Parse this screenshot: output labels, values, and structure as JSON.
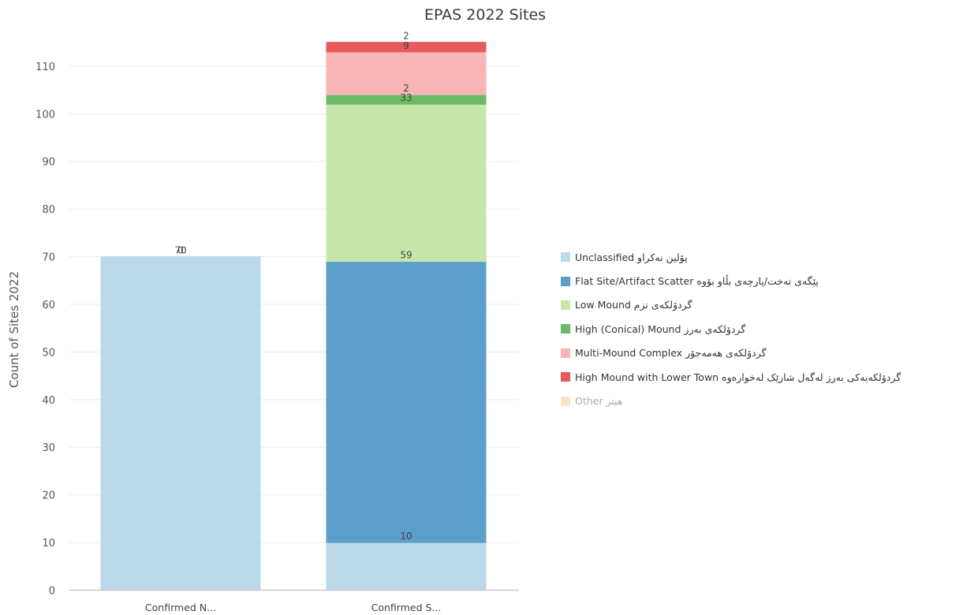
{
  "chart_data": {
    "type": "bar",
    "stacked": true,
    "title": "EPAS 2022 Sites",
    "xlabel": "",
    "ylabel": "Count of Sites 2022",
    "ylim": [
      0,
      115
    ],
    "yticks": [
      0,
      10,
      20,
      30,
      40,
      50,
      60,
      70,
      80,
      90,
      100,
      110
    ],
    "grid": true,
    "legend_position": "right",
    "categories": [
      "Confirmed N...",
      "Confirmed S..."
    ],
    "series": [
      {
        "name": "Unclassified پۆلین نەکراو",
        "color": "#bcd9ea",
        "values": [
          70,
          10
        ],
        "labels": [
          "70",
          "10"
        ]
      },
      {
        "name": "Flat Site/Artifact Scatter پێگەی تەخت/پارچەی بڵاو بۆوە",
        "color": "#5b9ec9",
        "values": [
          0,
          59
        ],
        "labels": [
          "0",
          "59"
        ]
      },
      {
        "name": "Low Mound گردۆلکەی نزم",
        "color": "#c7e6a9",
        "values": [
          0,
          33
        ],
        "labels": [
          "",
          "33"
        ]
      },
      {
        "name": "High (Conical) Mound گردۆلکەی بەرز",
        "color": "#6cba65",
        "values": [
          0,
          2
        ],
        "labels": [
          "",
          "2"
        ]
      },
      {
        "name": "Multi-Mound Complex گردۆلکەی هەمەجۆر",
        "color": "#f8b5b5",
        "values": [
          0,
          9
        ],
        "labels": [
          "",
          "9"
        ]
      },
      {
        "name": "High Mound with Lower Town گردۆلکەیەکی بەرز لەگەل شارێک لەخوارەوە",
        "color": "#e8595c",
        "values": [
          0,
          2
        ],
        "labels": [
          "",
          "2"
        ]
      },
      {
        "name": "Other هیتر",
        "color": "#fce2c4",
        "values": [
          0,
          0
        ],
        "labels": [
          "",
          ""
        ],
        "muted": true
      }
    ]
  }
}
